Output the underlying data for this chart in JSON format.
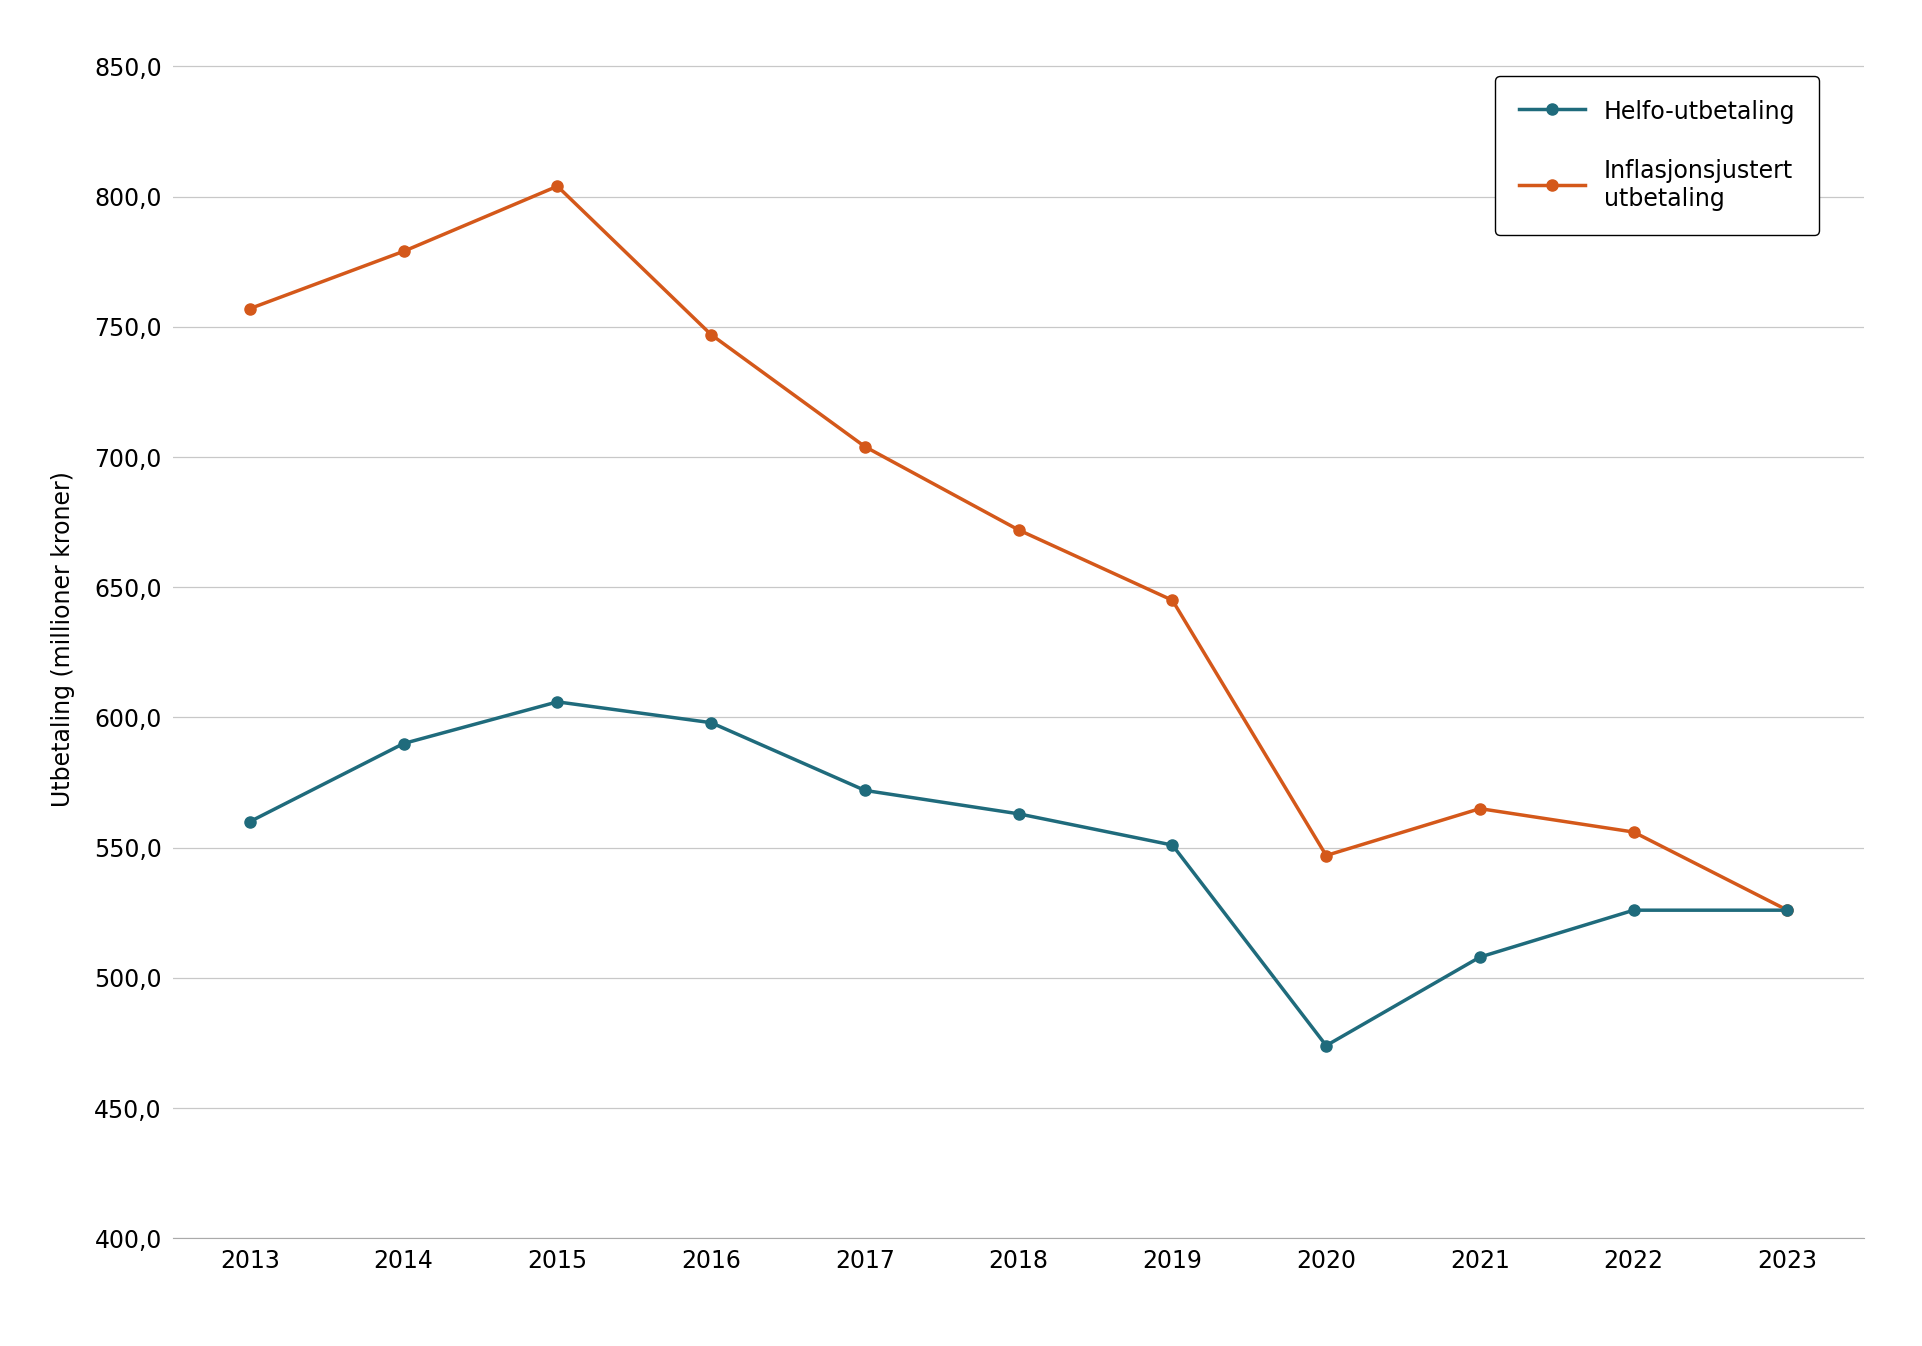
{
  "years": [
    2013,
    2014,
    2015,
    2016,
    2017,
    2018,
    2019,
    2020,
    2021,
    2022,
    2023
  ],
  "helfo": [
    560,
    590,
    606,
    598,
    572,
    563,
    551,
    474,
    508,
    526,
    526
  ],
  "inflasjon": [
    757,
    779,
    804,
    747,
    704,
    672,
    645,
    547,
    565,
    556,
    526
  ],
  "helfo_color": "#1F6B7C",
  "inflasjon_color": "#D4581A",
  "helfo_label": "Helfo-utbetaling",
  "inflasjon_label": "Inflasjonsjustert\nutbetaling",
  "ylabel": "Utbetaling (millioner kroner)",
  "ylim": [
    400,
    860
  ],
  "yticks": [
    400,
    450,
    500,
    550,
    600,
    650,
    700,
    750,
    800,
    850
  ],
  "background_color": "#ffffff",
  "grid_color": "#c8c8c8",
  "marker": "o",
  "linewidth": 2.5,
  "markersize": 8,
  "tick_fontsize": 17,
  "label_fontsize": 17,
  "legend_fontsize": 17
}
